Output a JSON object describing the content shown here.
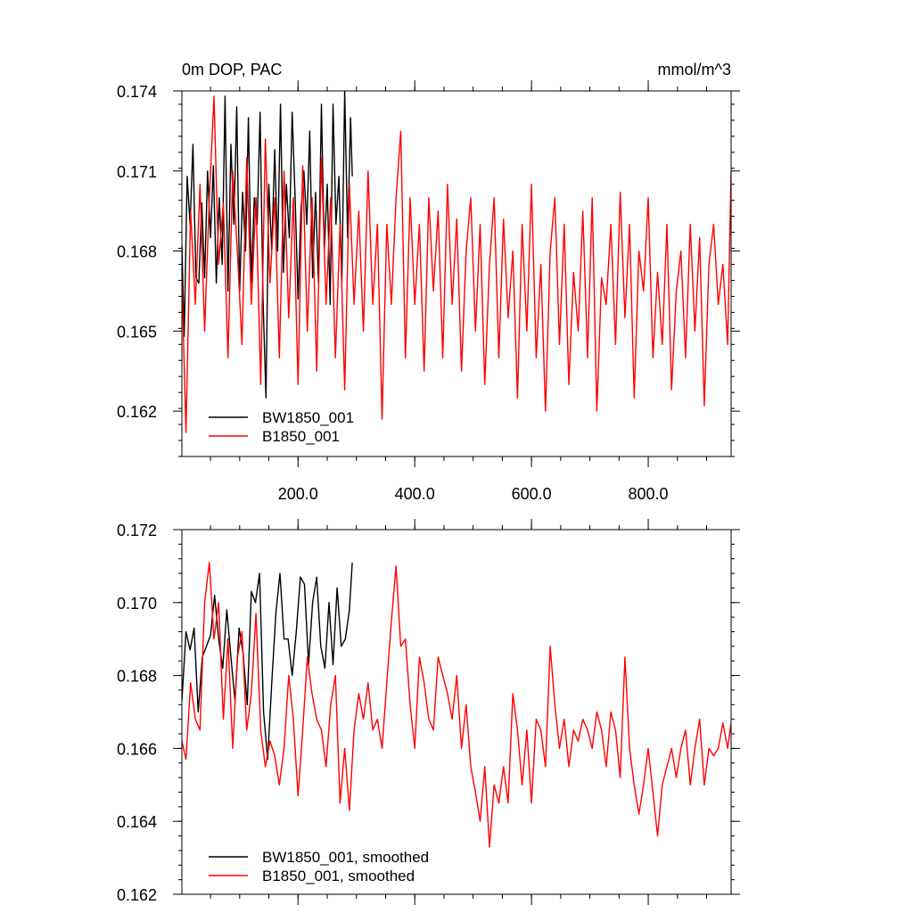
{
  "chart_data": [
    {
      "type": "line",
      "title": "0m DOP, PAC",
      "units": "mmol/m^3",
      "xlim": [
        1,
        942
      ],
      "ylim": [
        0.1603,
        0.174
      ],
      "yticks": [
        0.162,
        0.165,
        0.168,
        0.171,
        0.174
      ],
      "ytick_labels": [
        "0.162",
        "0.165",
        "0.168",
        "0.171",
        "0.174"
      ],
      "xticks": [
        200,
        400,
        600,
        800
      ],
      "xtick_labels": [
        "200.0",
        "400.0",
        "600.0",
        "800.0"
      ],
      "legend_position": "bottom-left",
      "colors": {
        "BW1850_001": "#000000",
        "B1850_001": "#ff0000"
      },
      "series": [
        {
          "name": "BW1850_001",
          "color": "#000000",
          "x": [
            1,
            5,
            10,
            15,
            20,
            25,
            30,
            35,
            40,
            45,
            50,
            55,
            60,
            65,
            70,
            75,
            80,
            85,
            90,
            95,
            100,
            105,
            110,
            115,
            120,
            125,
            130,
            135,
            140,
            145,
            150,
            155,
            160,
            165,
            170,
            175,
            180,
            185,
            190,
            195,
            200,
            205,
            210,
            215,
            220,
            225,
            230,
            235,
            240,
            245,
            250,
            255,
            260,
            265,
            270,
            275,
            280,
            285,
            290,
            293
          ],
          "values": [
            0.1682,
            0.1648,
            0.1708,
            0.169,
            0.172,
            0.167,
            0.1668,
            0.1698,
            0.167,
            0.171,
            0.1685,
            0.1712,
            0.1668,
            0.17,
            0.1675,
            0.1738,
            0.1665,
            0.172,
            0.169,
            0.1734,
            0.1665,
            0.1702,
            0.168,
            0.173,
            0.1668,
            0.17,
            0.169,
            0.1732,
            0.1662,
            0.1625,
            0.1705,
            0.168,
            0.1718,
            0.168,
            0.1735,
            0.1672,
            0.1705,
            0.1685,
            0.1732,
            0.17,
            0.1662,
            0.1695,
            0.171,
            0.169,
            0.1725,
            0.167,
            0.1702,
            0.1668,
            0.1735,
            0.168,
            0.1705,
            0.166,
            0.1735,
            0.169,
            0.1708,
            0.1668,
            0.174,
            0.1685,
            0.173,
            0.1708
          ]
        },
        {
          "name": "B1850_001",
          "color": "#ff0000",
          "x": [
            1,
            8,
            16,
            24,
            32,
            40,
            48,
            56,
            64,
            72,
            80,
            88,
            96,
            104,
            112,
            120,
            128,
            136,
            144,
            152,
            160,
            168,
            176,
            184,
            192,
            200,
            208,
            216,
            224,
            232,
            240,
            248,
            256,
            264,
            272,
            280,
            288,
            296,
            304,
            312,
            320,
            328,
            336,
            344,
            352,
            360,
            368,
            376,
            384,
            392,
            400,
            408,
            416,
            424,
            432,
            440,
            448,
            456,
            464,
            472,
            480,
            488,
            496,
            504,
            512,
            520,
            528,
            536,
            544,
            552,
            560,
            568,
            576,
            584,
            592,
            600,
            608,
            616,
            624,
            632,
            640,
            648,
            656,
            664,
            672,
            680,
            688,
            696,
            704,
            712,
            720,
            728,
            736,
            744,
            752,
            760,
            768,
            776,
            784,
            792,
            800,
            808,
            816,
            824,
            832,
            840,
            848,
            856,
            864,
            872,
            880,
            888,
            896,
            904,
            912,
            920,
            928,
            936,
            942
          ],
          "values": [
            0.167,
            0.1612,
            0.1695,
            0.166,
            0.1705,
            0.165,
            0.17,
            0.1738,
            0.1675,
            0.1698,
            0.164,
            0.171,
            0.168,
            0.1645,
            0.1715,
            0.166,
            0.17,
            0.163,
            0.1722,
            0.1668,
            0.17,
            0.164,
            0.171,
            0.1655,
            0.17,
            0.163,
            0.1712,
            0.165,
            0.17,
            0.1635,
            0.1715,
            0.166,
            0.17,
            0.164,
            0.169,
            0.1628,
            0.1705,
            0.166,
            0.1695,
            0.165,
            0.171,
            0.166,
            0.169,
            0.1617,
            0.169,
            0.166,
            0.17,
            0.1725,
            0.164,
            0.17,
            0.166,
            0.169,
            0.1635,
            0.17,
            0.1665,
            0.1695,
            0.164,
            0.1705,
            0.166,
            0.1692,
            0.1635,
            0.168,
            0.17,
            0.165,
            0.169,
            0.163,
            0.1675,
            0.17,
            0.164,
            0.1692,
            0.1655,
            0.168,
            0.1625,
            0.169,
            0.165,
            0.1705,
            0.164,
            0.1675,
            0.162,
            0.168,
            0.17,
            0.1645,
            0.169,
            0.163,
            0.1672,
            0.165,
            0.1695,
            0.164,
            0.17,
            0.162,
            0.167,
            0.166,
            0.169,
            0.1645,
            0.1702,
            0.1655,
            0.169,
            0.1625,
            0.168,
            0.1665,
            0.17,
            0.164,
            0.1672,
            0.1645,
            0.169,
            0.1628,
            0.1665,
            0.168,
            0.164,
            0.169,
            0.165,
            0.1685,
            0.1622,
            0.1675,
            0.169,
            0.166,
            0.1675,
            0.1645,
            0.171
          ]
        }
      ],
      "legend": [
        {
          "label": "BW1850_001",
          "color": "#000000"
        },
        {
          "label": "B1850_001",
          "color": "#ff0000"
        }
      ]
    },
    {
      "type": "line",
      "xlim": [
        1,
        942
      ],
      "ylim": [
        0.162,
        0.172
      ],
      "yticks": [
        0.162,
        0.164,
        0.166,
        0.168,
        0.17,
        0.172
      ],
      "ytick_labels": [
        "0.162",
        "0.164",
        "0.166",
        "0.168",
        "0.170",
        "0.172"
      ],
      "xticks": [
        200,
        400,
        600,
        800
      ],
      "xtick_labels": [],
      "legend_position": "bottom-left",
      "colors": {
        "BW1850_001, smoothed": "#000000",
        "B1850_001, smoothed": "#ff0000"
      },
      "series": [
        {
          "name": "BW1850_001, smoothed",
          "color": "#000000",
          "x": [
            1,
            8,
            15,
            22,
            29,
            36,
            43,
            50,
            57,
            64,
            71,
            78,
            85,
            92,
            99,
            106,
            113,
            120,
            127,
            134,
            141,
            148,
            155,
            162,
            169,
            176,
            183,
            190,
            197,
            204,
            211,
            218,
            225,
            232,
            239,
            246,
            253,
            260,
            267,
            274,
            281,
            288,
            293
          ],
          "values": [
            0.1673,
            0.1692,
            0.1687,
            0.1693,
            0.167,
            0.1685,
            0.1688,
            0.1691,
            0.1702,
            0.169,
            0.1682,
            0.1698,
            0.1685,
            0.1673,
            0.1693,
            0.1686,
            0.1672,
            0.1703,
            0.17,
            0.1708,
            0.167,
            0.1657,
            0.1678,
            0.1697,
            0.1708,
            0.169,
            0.169,
            0.168,
            0.1692,
            0.1707,
            0.1705,
            0.1683,
            0.17,
            0.1707,
            0.1688,
            0.1682,
            0.17,
            0.1683,
            0.1704,
            0.1688,
            0.169,
            0.1698,
            0.1711
          ]
        },
        {
          "name": "B1850_001, smoothed",
          "color": "#ff0000",
          "x": [
            1,
            8,
            16,
            24,
            32,
            40,
            48,
            56,
            64,
            72,
            80,
            88,
            96,
            104,
            112,
            120,
            128,
            136,
            144,
            152,
            160,
            168,
            176,
            184,
            192,
            200,
            208,
            216,
            224,
            232,
            240,
            248,
            256,
            264,
            272,
            280,
            288,
            296,
            304,
            312,
            320,
            328,
            336,
            344,
            352,
            360,
            368,
            376,
            384,
            392,
            400,
            408,
            416,
            424,
            432,
            440,
            448,
            456,
            464,
            472,
            480,
            488,
            496,
            504,
            512,
            520,
            528,
            536,
            544,
            552,
            560,
            568,
            576,
            584,
            592,
            600,
            608,
            616,
            624,
            632,
            640,
            648,
            656,
            664,
            672,
            680,
            688,
            696,
            704,
            712,
            720,
            728,
            736,
            744,
            752,
            760,
            768,
            776,
            784,
            792,
            800,
            808,
            816,
            824,
            832,
            840,
            848,
            856,
            864,
            872,
            880,
            888,
            896,
            904,
            912,
            920,
            928,
            936,
            942
          ],
          "values": [
            0.1662,
            0.1657,
            0.1678,
            0.1668,
            0.1665,
            0.17,
            0.1711,
            0.169,
            0.17,
            0.1668,
            0.169,
            0.166,
            0.1685,
            0.1692,
            0.1665,
            0.1675,
            0.1697,
            0.1665,
            0.1655,
            0.1662,
            0.1658,
            0.165,
            0.166,
            0.168,
            0.1668,
            0.1647,
            0.1665,
            0.1685,
            0.1675,
            0.1668,
            0.1665,
            0.1655,
            0.1672,
            0.168,
            0.1645,
            0.166,
            0.1643,
            0.1665,
            0.1675,
            0.1668,
            0.1678,
            0.1665,
            0.1668,
            0.166,
            0.1678,
            0.1695,
            0.171,
            0.1688,
            0.169,
            0.1672,
            0.166,
            0.1685,
            0.1678,
            0.1668,
            0.1665,
            0.1685,
            0.168,
            0.1675,
            0.1668,
            0.168,
            0.166,
            0.1672,
            0.1655,
            0.1648,
            0.164,
            0.1655,
            0.1633,
            0.165,
            0.1645,
            0.1655,
            0.1645,
            0.1675,
            0.1665,
            0.165,
            0.1665,
            0.1645,
            0.1668,
            0.1665,
            0.1655,
            0.1688,
            0.1672,
            0.166,
            0.1668,
            0.1655,
            0.1665,
            0.1662,
            0.1668,
            0.1665,
            0.166,
            0.167,
            0.1665,
            0.1655,
            0.167,
            0.1665,
            0.1652,
            0.1685,
            0.166,
            0.165,
            0.1642,
            0.165,
            0.166,
            0.1648,
            0.1636,
            0.165,
            0.1655,
            0.166,
            0.1652,
            0.166,
            0.1665,
            0.165,
            0.166,
            0.1668,
            0.165,
            0.166,
            0.1658,
            0.166,
            0.1667,
            0.166,
            0.1667
          ]
        }
      ],
      "legend": [
        {
          "label": "BW1850_001, smoothed",
          "color": "#000000"
        },
        {
          "label": "B1850_001, smoothed",
          "color": "#ff0000"
        }
      ]
    }
  ]
}
